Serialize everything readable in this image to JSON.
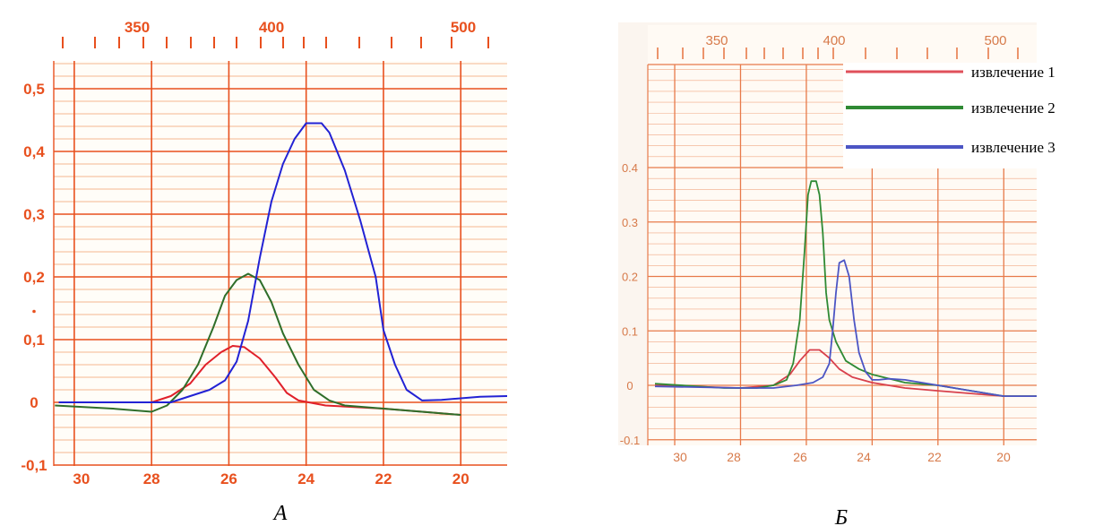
{
  "chart_data": [
    {
      "type": "line",
      "panel_label": "А",
      "x_bottom_ticks": [
        30,
        28,
        26,
        24,
        22,
        20
      ],
      "x_top_ticks": [
        350,
        400,
        500
      ],
      "y_ticks": [
        -0.1,
        0,
        0.1,
        0.2,
        0.3,
        0.4,
        0.5
      ],
      "y_tick_labels": [
        "-0,1",
        "0",
        "0,1",
        "0,2",
        "0,3",
        "0,4",
        "0,5"
      ],
      "xlim": [
        30.5,
        18.8
      ],
      "ylim": [
        -0.11,
        0.53
      ],
      "grid": true,
      "series": [
        {
          "color": "#e0202a",
          "points": [
            [
              30.4,
              0.0
            ],
            [
              28,
              0.0
            ],
            [
              27.5,
              0.01
            ],
            [
              27,
              0.03
            ],
            [
              26.6,
              0.06
            ],
            [
              26.2,
              0.08
            ],
            [
              25.9,
              0.09
            ],
            [
              25.6,
              0.088
            ],
            [
              25.2,
              0.07
            ],
            [
              24.8,
              0.04
            ],
            [
              24.5,
              0.015
            ],
            [
              24.2,
              0.003
            ],
            [
              23.5,
              -0.005
            ],
            [
              22,
              -0.01
            ],
            [
              21,
              -0.015
            ],
            [
              20,
              -0.02
            ]
          ]
        },
        {
          "color": "#2f6e2a",
          "points": [
            [
              30.5,
              -0.005
            ],
            [
              29,
              -0.01
            ],
            [
              28,
              -0.015
            ],
            [
              27.6,
              -0.005
            ],
            [
              27.2,
              0.02
            ],
            [
              26.8,
              0.06
            ],
            [
              26.4,
              0.12
            ],
            [
              26.1,
              0.17
            ],
            [
              25.8,
              0.195
            ],
            [
              25.5,
              0.205
            ],
            [
              25.2,
              0.195
            ],
            [
              24.9,
              0.16
            ],
            [
              24.6,
              0.11
            ],
            [
              24.2,
              0.06
            ],
            [
              23.8,
              0.02
            ],
            [
              23.4,
              0.003
            ],
            [
              23,
              -0.005
            ],
            [
              22,
              -0.01
            ],
            [
              21,
              -0.015
            ],
            [
              20,
              -0.02
            ]
          ]
        },
        {
          "color": "#2222d4",
          "points": [
            [
              30.4,
              0.0
            ],
            [
              28.5,
              0.0
            ],
            [
              27.5,
              0.0
            ],
            [
              27,
              0.01
            ],
            [
              26.5,
              0.02
            ],
            [
              26.1,
              0.035
            ],
            [
              25.8,
              0.065
            ],
            [
              25.5,
              0.13
            ],
            [
              25.2,
              0.23
            ],
            [
              24.9,
              0.32
            ],
            [
              24.6,
              0.38
            ],
            [
              24.3,
              0.42
            ],
            [
              24.0,
              0.445
            ],
            [
              23.6,
              0.445
            ],
            [
              23.4,
              0.43
            ],
            [
              23.0,
              0.37
            ],
            [
              22.6,
              0.29
            ],
            [
              22.2,
              0.2
            ],
            [
              22.0,
              0.115
            ],
            [
              21.7,
              0.06
            ],
            [
              21.4,
              0.02
            ],
            [
              21.0,
              0.003
            ],
            [
              20.5,
              0.004
            ],
            [
              19.5,
              0.009
            ],
            [
              18.8,
              0.01
            ]
          ]
        }
      ]
    },
    {
      "type": "line",
      "panel_label": "Б",
      "x_bottom_ticks": [
        30,
        28,
        26,
        24,
        22,
        20
      ],
      "x_top_ticks": [
        350,
        400,
        500
      ],
      "y_ticks": [
        -0.1,
        0,
        0.1,
        0.2,
        0.3,
        0.4
      ],
      "y_tick_labels": [
        "-0.1",
        "0",
        "0.1",
        "0.2",
        "0.3",
        "0.4"
      ],
      "xlim": [
        30.6,
        19.0
      ],
      "ylim": [
        -0.13,
        0.62
      ],
      "grid": true,
      "legend_position": "top-right",
      "series": [
        {
          "name": "извлечение 1",
          "color": "#d8404c",
          "points": [
            [
              30.6,
              0.0
            ],
            [
              28,
              -0.005
            ],
            [
              27,
              0.0
            ],
            [
              26.5,
              0.02
            ],
            [
              26.2,
              0.045
            ],
            [
              25.9,
              0.065
            ],
            [
              25.6,
              0.065
            ],
            [
              25.3,
              0.05
            ],
            [
              25.0,
              0.03
            ],
            [
              24.6,
              0.015
            ],
            [
              24,
              0.005
            ],
            [
              23,
              -0.005
            ],
            [
              22,
              -0.01
            ],
            [
              21,
              -0.015
            ],
            [
              20,
              -0.02
            ],
            [
              19.0,
              -0.02
            ]
          ]
        },
        {
          "name": "извлечение 2",
          "color": "#2f8a34",
          "points": [
            [
              30.6,
              0.003
            ],
            [
              28.5,
              -0.005
            ],
            [
              27.5,
              -0.005
            ],
            [
              27,
              0.0
            ],
            [
              26.6,
              0.01
            ],
            [
              26.4,
              0.04
            ],
            [
              26.2,
              0.12
            ],
            [
              26.05,
              0.25
            ],
            [
              25.95,
              0.35
            ],
            [
              25.85,
              0.375
            ],
            [
              25.7,
              0.375
            ],
            [
              25.6,
              0.35
            ],
            [
              25.5,
              0.28
            ],
            [
              25.4,
              0.17
            ],
            [
              25.3,
              0.12
            ],
            [
              25.1,
              0.08
            ],
            [
              24.8,
              0.045
            ],
            [
              24.4,
              0.03
            ],
            [
              24.0,
              0.02
            ],
            [
              23.0,
              0.005
            ],
            [
              22,
              0.0
            ],
            [
              21,
              -0.01
            ],
            [
              20,
              -0.02
            ],
            [
              19.0,
              -0.02
            ]
          ]
        },
        {
          "name": "извлечение 3",
          "color": "#4c55c4",
          "points": [
            [
              30.6,
              -0.002
            ],
            [
              28,
              -0.005
            ],
            [
              27,
              -0.005
            ],
            [
              26.3,
              0.0
            ],
            [
              25.8,
              0.005
            ],
            [
              25.5,
              0.015
            ],
            [
              25.3,
              0.04
            ],
            [
              25.2,
              0.1
            ],
            [
              25.1,
              0.17
            ],
            [
              25.0,
              0.225
            ],
            [
              24.85,
              0.23
            ],
            [
              24.7,
              0.2
            ],
            [
              24.55,
              0.12
            ],
            [
              24.4,
              0.06
            ],
            [
              24.2,
              0.025
            ],
            [
              24.0,
              0.01
            ],
            [
              23.8,
              0.01
            ],
            [
              23.5,
              0.012
            ],
            [
              23,
              0.01
            ],
            [
              22,
              0.0
            ],
            [
              21,
              -0.01
            ],
            [
              20,
              -0.02
            ],
            [
              19.0,
              -0.02
            ]
          ]
        }
      ]
    }
  ]
}
